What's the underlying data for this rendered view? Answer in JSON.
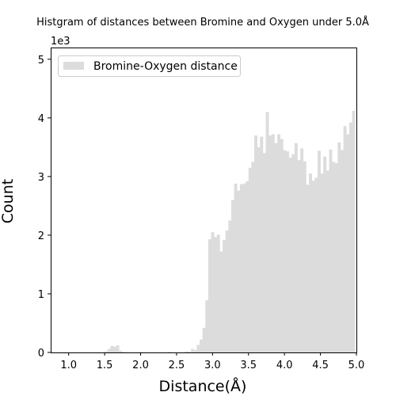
{
  "chart_data": {
    "type": "histogram",
    "title": "Histgram of distances between Bromine and Oxygen under 5.0Å",
    "xlabel": "Distance(Å)",
    "ylabel": "Count",
    "y_offset_text": "1e3",
    "xlim": [
      0.75,
      5.0
    ],
    "ylim": [
      0,
      5200
    ],
    "xticks": [
      1.0,
      1.5,
      2.0,
      2.5,
      3.0,
      3.5,
      4.0,
      4.5,
      5.0
    ],
    "xtick_labels": [
      "1.0",
      "1.5",
      "2.0",
      "2.5",
      "3.0",
      "3.5",
      "4.0",
      "4.5",
      "5.0"
    ],
    "yticks": [
      0,
      1000,
      2000,
      3000,
      4000,
      5000
    ],
    "ytick_labels": [
      "0",
      "1",
      "2",
      "3",
      "4",
      "5"
    ],
    "bar_color": "#dcdcdc",
    "grid": false,
    "legend_position": "upper-left",
    "series": [
      {
        "name": "Bromine-Oxygen distance",
        "bin_width": 0.04,
        "x": [
          0.84,
          0.88,
          0.92,
          0.96,
          1.0,
          1.04,
          1.08,
          1.12,
          1.16,
          1.2,
          1.24,
          1.28,
          1.32,
          1.36,
          1.4,
          1.44,
          1.48,
          1.52,
          1.56,
          1.6,
          1.64,
          1.68,
          1.72,
          1.76,
          1.8,
          1.84,
          1.88,
          1.92,
          1.96,
          2.0,
          2.04,
          2.08,
          2.12,
          2.16,
          2.2,
          2.24,
          2.28,
          2.32,
          2.36,
          2.4,
          2.44,
          2.48,
          2.52,
          2.56,
          2.6,
          2.64,
          2.68,
          2.72,
          2.76,
          2.8,
          2.84,
          2.88,
          2.92,
          2.96,
          3.0,
          3.04,
          3.08,
          3.12,
          3.16,
          3.2,
          3.24,
          3.28,
          3.32,
          3.36,
          3.4,
          3.44,
          3.48,
          3.52,
          3.56,
          3.6,
          3.64,
          3.68,
          3.72,
          3.76,
          3.8,
          3.84,
          3.88,
          3.92,
          3.96,
          4.0,
          4.04,
          4.08,
          4.12,
          4.16,
          4.2,
          4.24,
          4.28,
          4.32,
          4.36,
          4.4,
          4.44,
          4.48,
          4.52,
          4.56,
          4.6,
          4.64,
          4.68,
          4.72,
          4.76,
          4.8,
          4.84,
          4.88,
          4.92,
          4.96
        ],
        "values": [
          0,
          0,
          0,
          0,
          0,
          0,
          0,
          0,
          0,
          0,
          0,
          0,
          0,
          0,
          0,
          0,
          0,
          20,
          60,
          110,
          100,
          120,
          30,
          10,
          0,
          0,
          0,
          0,
          0,
          10,
          0,
          0,
          0,
          0,
          0,
          0,
          0,
          0,
          0,
          10,
          0,
          0,
          0,
          0,
          0,
          20,
          10,
          60,
          40,
          130,
          220,
          420,
          890,
          1930,
          2050,
          1970,
          2010,
          1720,
          1920,
          2080,
          2250,
          2600,
          2880,
          2760,
          2870,
          2880,
          2920,
          3150,
          3250,
          3700,
          3500,
          3680,
          3400,
          4100,
          3700,
          3720,
          3570,
          3720,
          3640,
          3450,
          3430,
          3320,
          3380,
          3570,
          3280,
          3480,
          3260,
          2860,
          3050,
          2930,
          2980,
          3440,
          3050,
          3340,
          3100,
          3460,
          3250,
          3230,
          3580,
          3450,
          3860,
          3720,
          3920,
          4120
        ]
      }
    ]
  }
}
